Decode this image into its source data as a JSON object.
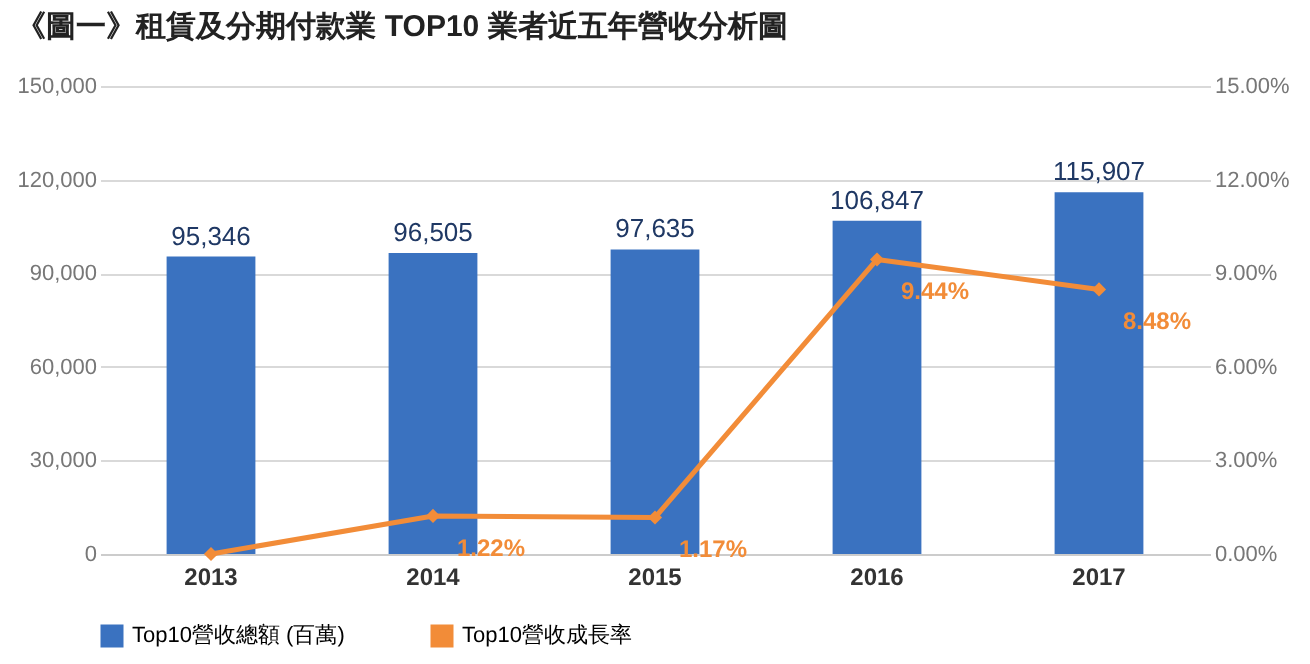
{
  "chart_data": {
    "type": "bar",
    "title": "《圖一》租賃及分期付款業 TOP10 業者近五年營收分析圖",
    "categories": [
      "2013",
      "2014",
      "2015",
      "2016",
      "2017"
    ],
    "series": [
      {
        "name": "Top10營收總額 (百萬)",
        "color": "#3a72c0",
        "values": [
          95346,
          96505,
          97635,
          106847,
          115907
        ],
        "value_labels": [
          "95,346",
          "96,505",
          "97,635",
          "106,847",
          "115,907"
        ]
      },
      {
        "name": "Top10營收成長率",
        "color": "#f28c38",
        "type": "line",
        "axis": "y2",
        "values": [
          0,
          1.22,
          1.17,
          9.44,
          8.48
        ],
        "value_labels": [
          null,
          "1.22%",
          "1.17%",
          "9.44%",
          "8.48%"
        ]
      }
    ],
    "ylim": [
      0,
      150000
    ],
    "yticks": [
      {
        "value": 0,
        "label": "0"
      },
      {
        "value": 30000,
        "label": "30,000"
      },
      {
        "value": 60000,
        "label": "60,000"
      },
      {
        "value": 90000,
        "label": "90,000"
      },
      {
        "value": 120000,
        "label": "120,000"
      },
      {
        "value": 150000,
        "label": "150,000"
      }
    ],
    "y2lim": [
      0,
      15
    ],
    "y2ticks": [
      {
        "value": 0,
        "label": "0.00%"
      },
      {
        "value": 3,
        "label": "3.00%"
      },
      {
        "value": 6,
        "label": "6.00%"
      },
      {
        "value": 9,
        "label": "9.00%"
      },
      {
        "value": 12,
        "label": "12.00%"
      },
      {
        "value": 15,
        "label": "15.00%"
      }
    ],
    "grid": "y",
    "legend": "bottom",
    "marker": "diamond",
    "line_style": "solid"
  }
}
